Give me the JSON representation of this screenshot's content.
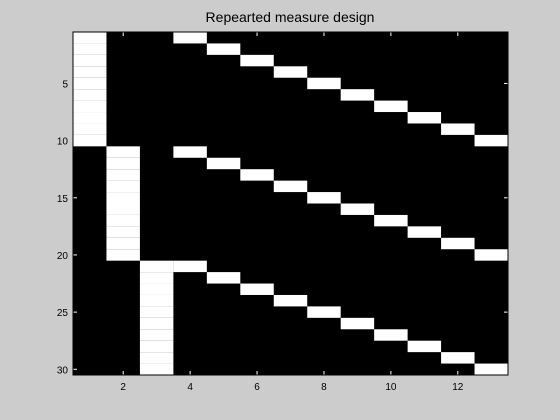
{
  "chart_data": {
    "type": "heatmap",
    "title": "Repearted measure design",
    "xlabel": "",
    "ylabel": "",
    "colormap": "gray",
    "colors": {
      "background": "#cccccc",
      "low": "#000000",
      "high": "#ffffff"
    },
    "rows": 30,
    "cols": 13,
    "xlim": [
      0.5,
      13.5
    ],
    "ylim": [
      0.5,
      30.5
    ],
    "y_direction": "reverse",
    "x_ticks": [
      2,
      4,
      6,
      8,
      10,
      12
    ],
    "y_ticks": [
      5,
      10,
      15,
      20,
      25,
      30
    ],
    "x_tick_labels": [
      "2",
      "4",
      "6",
      "8",
      "10",
      "12"
    ],
    "y_tick_labels": [
      "5",
      "10",
      "15",
      "20",
      "25",
      "30"
    ],
    "matrix": [
      [
        1,
        0,
        0,
        1,
        0,
        0,
        0,
        0,
        0,
        0,
        0,
        0,
        0
      ],
      [
        1,
        0,
        0,
        0,
        1,
        0,
        0,
        0,
        0,
        0,
        0,
        0,
        0
      ],
      [
        1,
        0,
        0,
        0,
        0,
        1,
        0,
        0,
        0,
        0,
        0,
        0,
        0
      ],
      [
        1,
        0,
        0,
        0,
        0,
        0,
        1,
        0,
        0,
        0,
        0,
        0,
        0
      ],
      [
        1,
        0,
        0,
        0,
        0,
        0,
        0,
        1,
        0,
        0,
        0,
        0,
        0
      ],
      [
        1,
        0,
        0,
        0,
        0,
        0,
        0,
        0,
        1,
        0,
        0,
        0,
        0
      ],
      [
        1,
        0,
        0,
        0,
        0,
        0,
        0,
        0,
        0,
        1,
        0,
        0,
        0
      ],
      [
        1,
        0,
        0,
        0,
        0,
        0,
        0,
        0,
        0,
        0,
        1,
        0,
        0
      ],
      [
        1,
        0,
        0,
        0,
        0,
        0,
        0,
        0,
        0,
        0,
        0,
        1,
        0
      ],
      [
        1,
        0,
        0,
        0,
        0,
        0,
        0,
        0,
        0,
        0,
        0,
        0,
        1
      ],
      [
        0,
        1,
        0,
        1,
        0,
        0,
        0,
        0,
        0,
        0,
        0,
        0,
        0
      ],
      [
        0,
        1,
        0,
        0,
        1,
        0,
        0,
        0,
        0,
        0,
        0,
        0,
        0
      ],
      [
        0,
        1,
        0,
        0,
        0,
        1,
        0,
        0,
        0,
        0,
        0,
        0,
        0
      ],
      [
        0,
        1,
        0,
        0,
        0,
        0,
        1,
        0,
        0,
        0,
        0,
        0,
        0
      ],
      [
        0,
        1,
        0,
        0,
        0,
        0,
        0,
        1,
        0,
        0,
        0,
        0,
        0
      ],
      [
        0,
        1,
        0,
        0,
        0,
        0,
        0,
        0,
        1,
        0,
        0,
        0,
        0
      ],
      [
        0,
        1,
        0,
        0,
        0,
        0,
        0,
        0,
        0,
        1,
        0,
        0,
        0
      ],
      [
        0,
        1,
        0,
        0,
        0,
        0,
        0,
        0,
        0,
        0,
        1,
        0,
        0
      ],
      [
        0,
        1,
        0,
        0,
        0,
        0,
        0,
        0,
        0,
        0,
        0,
        1,
        0
      ],
      [
        0,
        1,
        0,
        0,
        0,
        0,
        0,
        0,
        0,
        0,
        0,
        0,
        1
      ],
      [
        0,
        0,
        1,
        1,
        0,
        0,
        0,
        0,
        0,
        0,
        0,
        0,
        0
      ],
      [
        0,
        0,
        1,
        0,
        1,
        0,
        0,
        0,
        0,
        0,
        0,
        0,
        0
      ],
      [
        0,
        0,
        1,
        0,
        0,
        1,
        0,
        0,
        0,
        0,
        0,
        0,
        0
      ],
      [
        0,
        0,
        1,
        0,
        0,
        0,
        1,
        0,
        0,
        0,
        0,
        0,
        0
      ],
      [
        0,
        0,
        1,
        0,
        0,
        0,
        0,
        1,
        0,
        0,
        0,
        0,
        0
      ],
      [
        0,
        0,
        1,
        0,
        0,
        0,
        0,
        0,
        1,
        0,
        0,
        0,
        0
      ],
      [
        0,
        0,
        1,
        0,
        0,
        0,
        0,
        0,
        0,
        1,
        0,
        0,
        0
      ],
      [
        0,
        0,
        1,
        0,
        0,
        0,
        0,
        0,
        0,
        0,
        1,
        0,
        0
      ],
      [
        0,
        0,
        1,
        0,
        0,
        0,
        0,
        0,
        0,
        0,
        0,
        1,
        0
      ],
      [
        0,
        0,
        1,
        0,
        0,
        0,
        0,
        0,
        0,
        0,
        0,
        0,
        1
      ]
    ]
  }
}
